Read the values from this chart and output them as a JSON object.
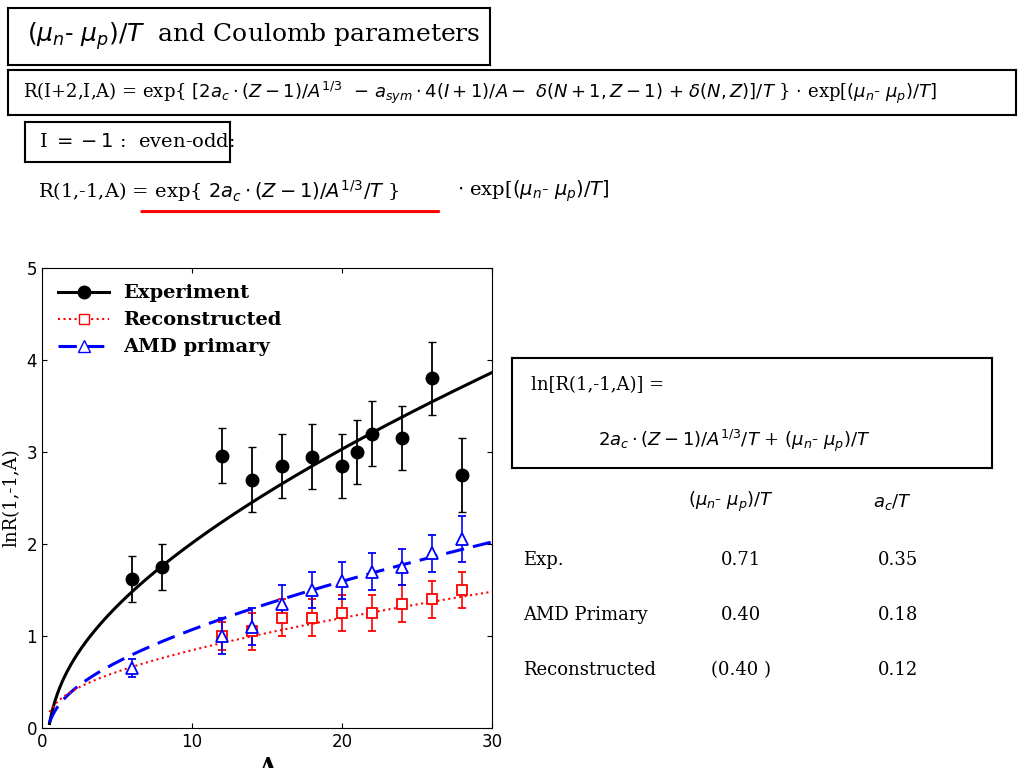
{
  "ylabel": "lnR(1,-1,A)",
  "xlabel": "A",
  "xlim": [
    0,
    30
  ],
  "ylim": [
    0,
    5
  ],
  "exp_x": [
    6,
    8,
    12,
    14,
    16,
    18,
    20,
    21,
    22,
    24,
    26,
    28
  ],
  "exp_y": [
    1.62,
    1.75,
    2.96,
    2.7,
    2.85,
    2.95,
    2.85,
    3.0,
    3.2,
    3.15,
    3.8,
    2.75
  ],
  "exp_yerr": [
    0.25,
    0.25,
    0.3,
    0.35,
    0.35,
    0.35,
    0.35,
    0.35,
    0.35,
    0.35,
    0.4,
    0.4
  ],
  "recon_x": [
    12,
    14,
    16,
    18,
    20,
    22,
    24,
    26,
    28
  ],
  "recon_y": [
    1.0,
    1.05,
    1.2,
    1.2,
    1.25,
    1.25,
    1.35,
    1.4,
    1.5
  ],
  "recon_yerr": [
    0.15,
    0.2,
    0.2,
    0.2,
    0.2,
    0.2,
    0.2,
    0.2,
    0.2
  ],
  "amd_x": [
    6,
    12,
    14,
    16,
    18,
    20,
    22,
    24,
    26,
    28
  ],
  "amd_y": [
    0.65,
    1.0,
    1.1,
    1.35,
    1.5,
    1.6,
    1.7,
    1.75,
    1.9,
    2.05
  ],
  "amd_yerr": [
    0.1,
    0.2,
    0.2,
    0.2,
    0.2,
    0.2,
    0.2,
    0.2,
    0.2,
    0.25
  ],
  "fit_exp_ac": 0.35,
  "fit_exp_mu": 0.71,
  "fit_amd_ac": 0.18,
  "fit_amd_mu": 0.4,
  "fit_rec_ac": 0.12,
  "fit_rec_mu": 0.4,
  "bg_color": "#ffffff",
  "exp_color": "#000000",
  "recon_color": "#cc0000",
  "amd_color": "#0000cc",
  "title_fontsize": 18,
  "formula_fontsize": 13,
  "label_fontsize": 14,
  "table_fontsize": 13
}
